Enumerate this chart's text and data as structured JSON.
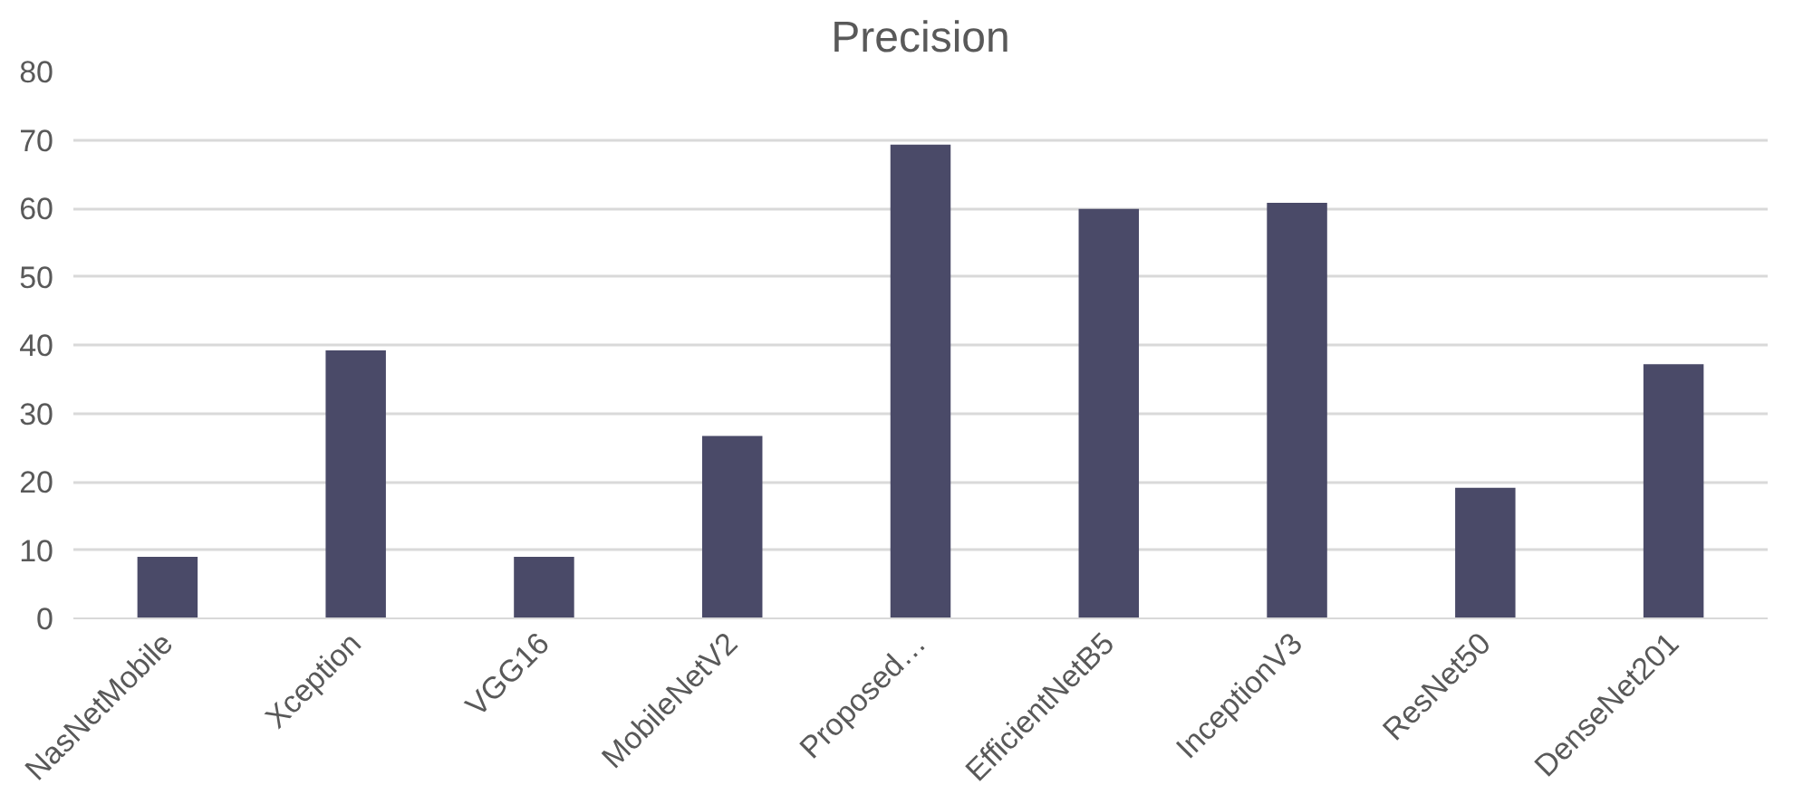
{
  "chart_data": {
    "type": "bar",
    "title": "Precision",
    "categories": [
      "NasNetMobile",
      "Xception",
      "VGG16",
      "MobileNetV2",
      "Proposed…",
      "EfficientNetB5",
      "InceptionV3",
      "ResNet50",
      "DenseNet201"
    ],
    "values": [
      9,
      39.2,
      9,
      26.7,
      69.3,
      59.9,
      60.8,
      19.1,
      37.2
    ],
    "color": "#4a4a68",
    "ylim": [
      0,
      80
    ],
    "yticks": [
      0,
      10,
      20,
      30,
      40,
      50,
      60,
      70,
      80
    ],
    "grid": "y"
  }
}
